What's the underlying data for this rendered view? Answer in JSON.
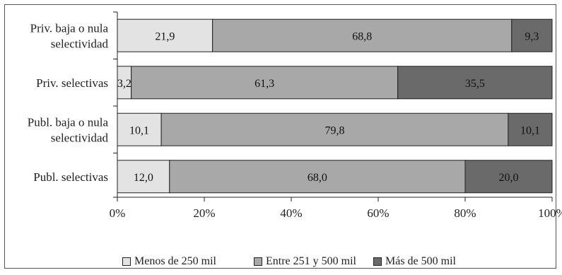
{
  "chart_data": {
    "type": "bar",
    "orientation": "horizontal",
    "stacked": true,
    "categories": [
      [
        "Priv. baja o nula",
        "selectividad"
      ],
      [
        "Priv. selectivas"
      ],
      [
        "Publ. baja o nula",
        "selectividad"
      ],
      [
        "Publ. selectivas"
      ]
    ],
    "series": [
      {
        "name": "Menos de 250 mil",
        "color": "#e3e3e3",
        "values": [
          21.9,
          3.2,
          10.1,
          12.0
        ],
        "labels": [
          "21,9",
          "3,2",
          "10,1",
          "12,0"
        ]
      },
      {
        "name": "Entre 251 y 500 mil",
        "color": "#a8a8a8",
        "values": [
          68.8,
          61.3,
          79.8,
          68.0
        ],
        "labels": [
          "68,8",
          "61,3",
          "79,8",
          "68,0"
        ]
      },
      {
        "name": "Más de 500 mil",
        "color": "#6a6a6a",
        "values": [
          9.3,
          35.5,
          10.1,
          20.0
        ],
        "labels": [
          "9,3",
          "35,5",
          "10,1",
          "20,0"
        ]
      }
    ],
    "xlim": [
      0,
      100
    ],
    "xticks": [
      "0%",
      "20%",
      "40%",
      "60%",
      "80%",
      "100%"
    ],
    "grid": false,
    "legend_position": "bottom"
  }
}
